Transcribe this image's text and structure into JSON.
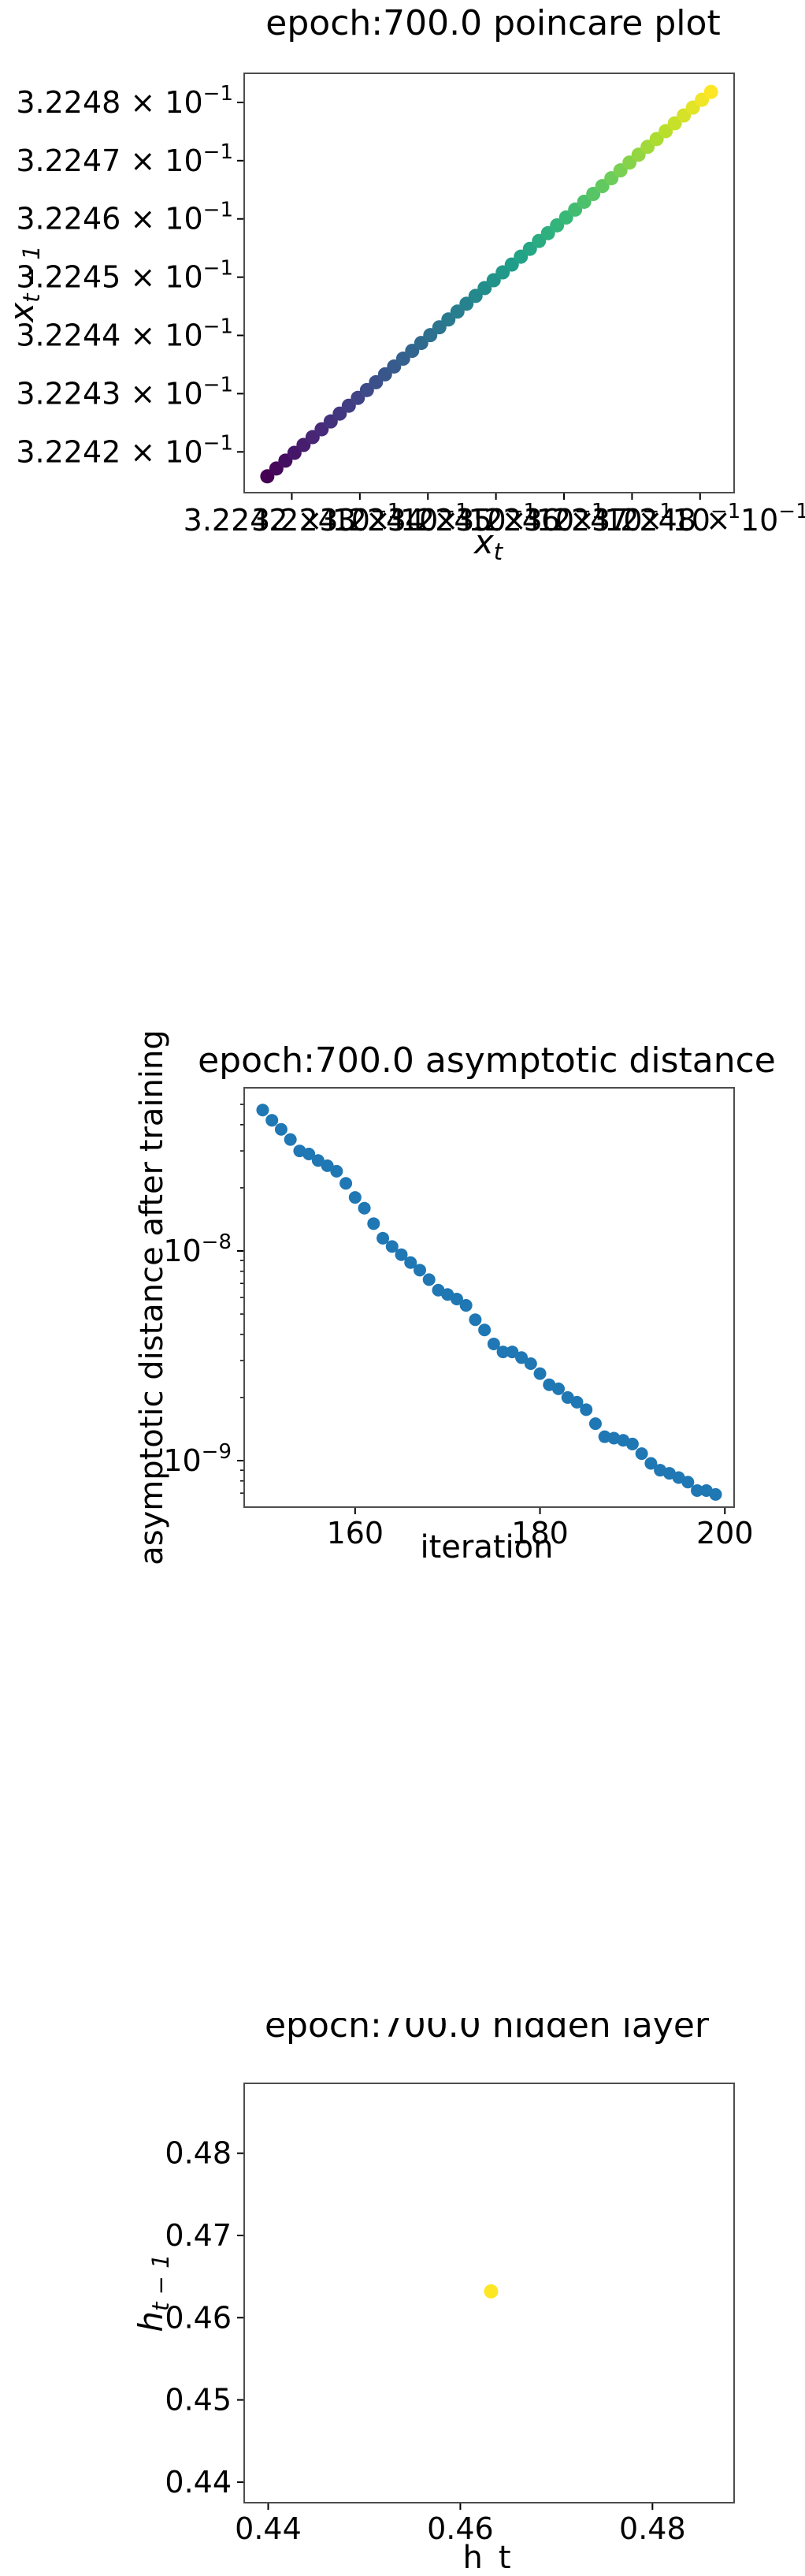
{
  "chart_data": [
    {
      "type": "scatter",
      "title": "epoch:700.0 poincare plot",
      "xlabel": "x_t",
      "ylabel": "x_{t-1}",
      "xlim": [
        0.322413,
        0.322485
      ],
      "ylim": [
        0.322413,
        0.322485
      ],
      "colormap": "viridis",
      "ytick_mantissas": [
        "3.2242",
        "3.2243",
        "3.2244",
        "3.2245",
        "3.2246",
        "3.2247",
        "3.2248"
      ],
      "ytick_values": [
        0.32242,
        0.32243,
        0.32244,
        0.32245,
        0.32246,
        0.32247,
        0.32248
      ],
      "xtick_mantissas": [
        "3.2242",
        "3.2243",
        "3.2244",
        "3.2245",
        "3.2246",
        "3.2247",
        "3.2248"
      ],
      "xtick_values": [
        0.32242,
        0.32243,
        0.32244,
        0.32245,
        0.32246,
        0.32247,
        0.32248
      ],
      "tick_suffix": "× 10",
      "tick_exponent": "−1",
      "series": [
        {
          "x_start": 0.3224164,
          "x_end": 0.3224816,
          "y_start": 0.3224158,
          "y_end": 0.3224818,
          "count": 50
        }
      ]
    },
    {
      "type": "scatter",
      "title": "epoch:700.0 asymptotic distance",
      "xlabel": "iteration",
      "ylabel": "asymptotic distance after training",
      "xlim": [
        148,
        201
      ],
      "ylim": [
        6e-10,
        6e-08
      ],
      "yscale": "log",
      "color": "#1f77b4",
      "xticks": [
        160,
        180,
        200
      ],
      "yticks": [
        {
          "mantissa": "10",
          "exponent": "−8",
          "value": 1e-08
        },
        {
          "mantissa": "10",
          "exponent": "−9",
          "value": 1e-09
        }
      ],
      "series": [
        {
          "x": [
            150,
            151,
            152,
            153,
            154,
            155,
            156,
            157,
            158,
            159,
            160,
            161,
            162,
            163,
            164,
            165,
            166,
            167,
            168,
            169,
            170,
            171,
            172,
            173,
            174,
            175,
            176,
            177,
            178,
            179,
            180,
            181,
            182,
            183,
            184,
            185,
            186,
            187,
            188,
            189,
            190,
            191,
            192,
            193,
            194,
            195,
            196,
            197,
            198,
            199
          ],
          "y": [
            4.7e-08,
            4.2e-08,
            3.8e-08,
            3.4e-08,
            3e-08,
            2.9e-08,
            2.7e-08,
            2.55e-08,
            2.4e-08,
            2.1e-08,
            1.8e-08,
            1.6e-08,
            1.35e-08,
            1.15e-08,
            1.05e-08,
            9.6e-09,
            8.8e-09,
            8.1e-09,
            7.3e-09,
            6.5e-09,
            6.2e-09,
            5.9e-09,
            5.5e-09,
            4.7e-09,
            4.2e-09,
            3.6e-09,
            3.3e-09,
            3.3e-09,
            3.1e-09,
            2.9e-09,
            2.6e-09,
            2.3e-09,
            2.2e-09,
            2e-09,
            1.9e-09,
            1.75e-09,
            1.5e-09,
            1.3e-09,
            1.28e-09,
            1.25e-09,
            1.2e-09,
            1.08e-09,
            9.7e-10,
            9e-10,
            8.7e-10,
            8.3e-10,
            7.9e-10,
            7.2e-10,
            7.2e-10,
            6.9e-10
          ]
        }
      ]
    },
    {
      "type": "scatter",
      "title": "epoch:700.0 hidden layer",
      "xlabel": "h_t",
      "ylabel": "h_{t-1}",
      "xlim": [
        0.4375,
        0.4885
      ],
      "ylim": [
        0.4375,
        0.4885
      ],
      "xticks": [
        "0.44",
        "0.46",
        "0.48"
      ],
      "xtick_values": [
        0.44,
        0.46,
        0.48
      ],
      "yticks": [
        "0.44",
        "0.45",
        "0.46",
        "0.47",
        "0.48"
      ],
      "ytick_values": [
        0.44,
        0.45,
        0.46,
        0.47,
        0.48
      ],
      "color": "#fde725",
      "series": [
        {
          "x": [
            0.4632
          ],
          "y": [
            0.4632
          ]
        }
      ]
    }
  ]
}
